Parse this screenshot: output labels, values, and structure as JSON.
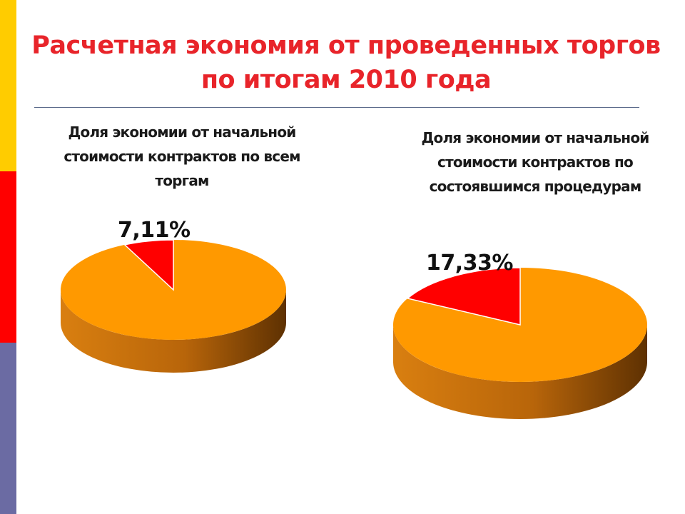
{
  "slide": {
    "title": "Расчетная экономия от проведенных торгов по итогам 2010 года",
    "accent_colors": [
      "#ffcc00",
      "#ff0000",
      "#6b6ba3"
    ]
  },
  "chart_data": [
    {
      "type": "pie",
      "title": "Доля экономии от начальной стоимости контрактов по всем торгам",
      "slices": [
        {
          "label": "7,11%",
          "value": 7.11,
          "color": "#ff0000"
        },
        {
          "label": "",
          "value": 92.89,
          "color": "#ff9900"
        }
      ],
      "style": "3d"
    },
    {
      "type": "pie",
      "title": "Доля экономии от начальной стоимости контрактов по состоявшимся процедурам",
      "slices": [
        {
          "label": "17,33%",
          "value": 17.33,
          "color": "#ff0000"
        },
        {
          "label": "",
          "value": 82.67,
          "color": "#ff9900"
        }
      ],
      "style": "3d"
    }
  ]
}
